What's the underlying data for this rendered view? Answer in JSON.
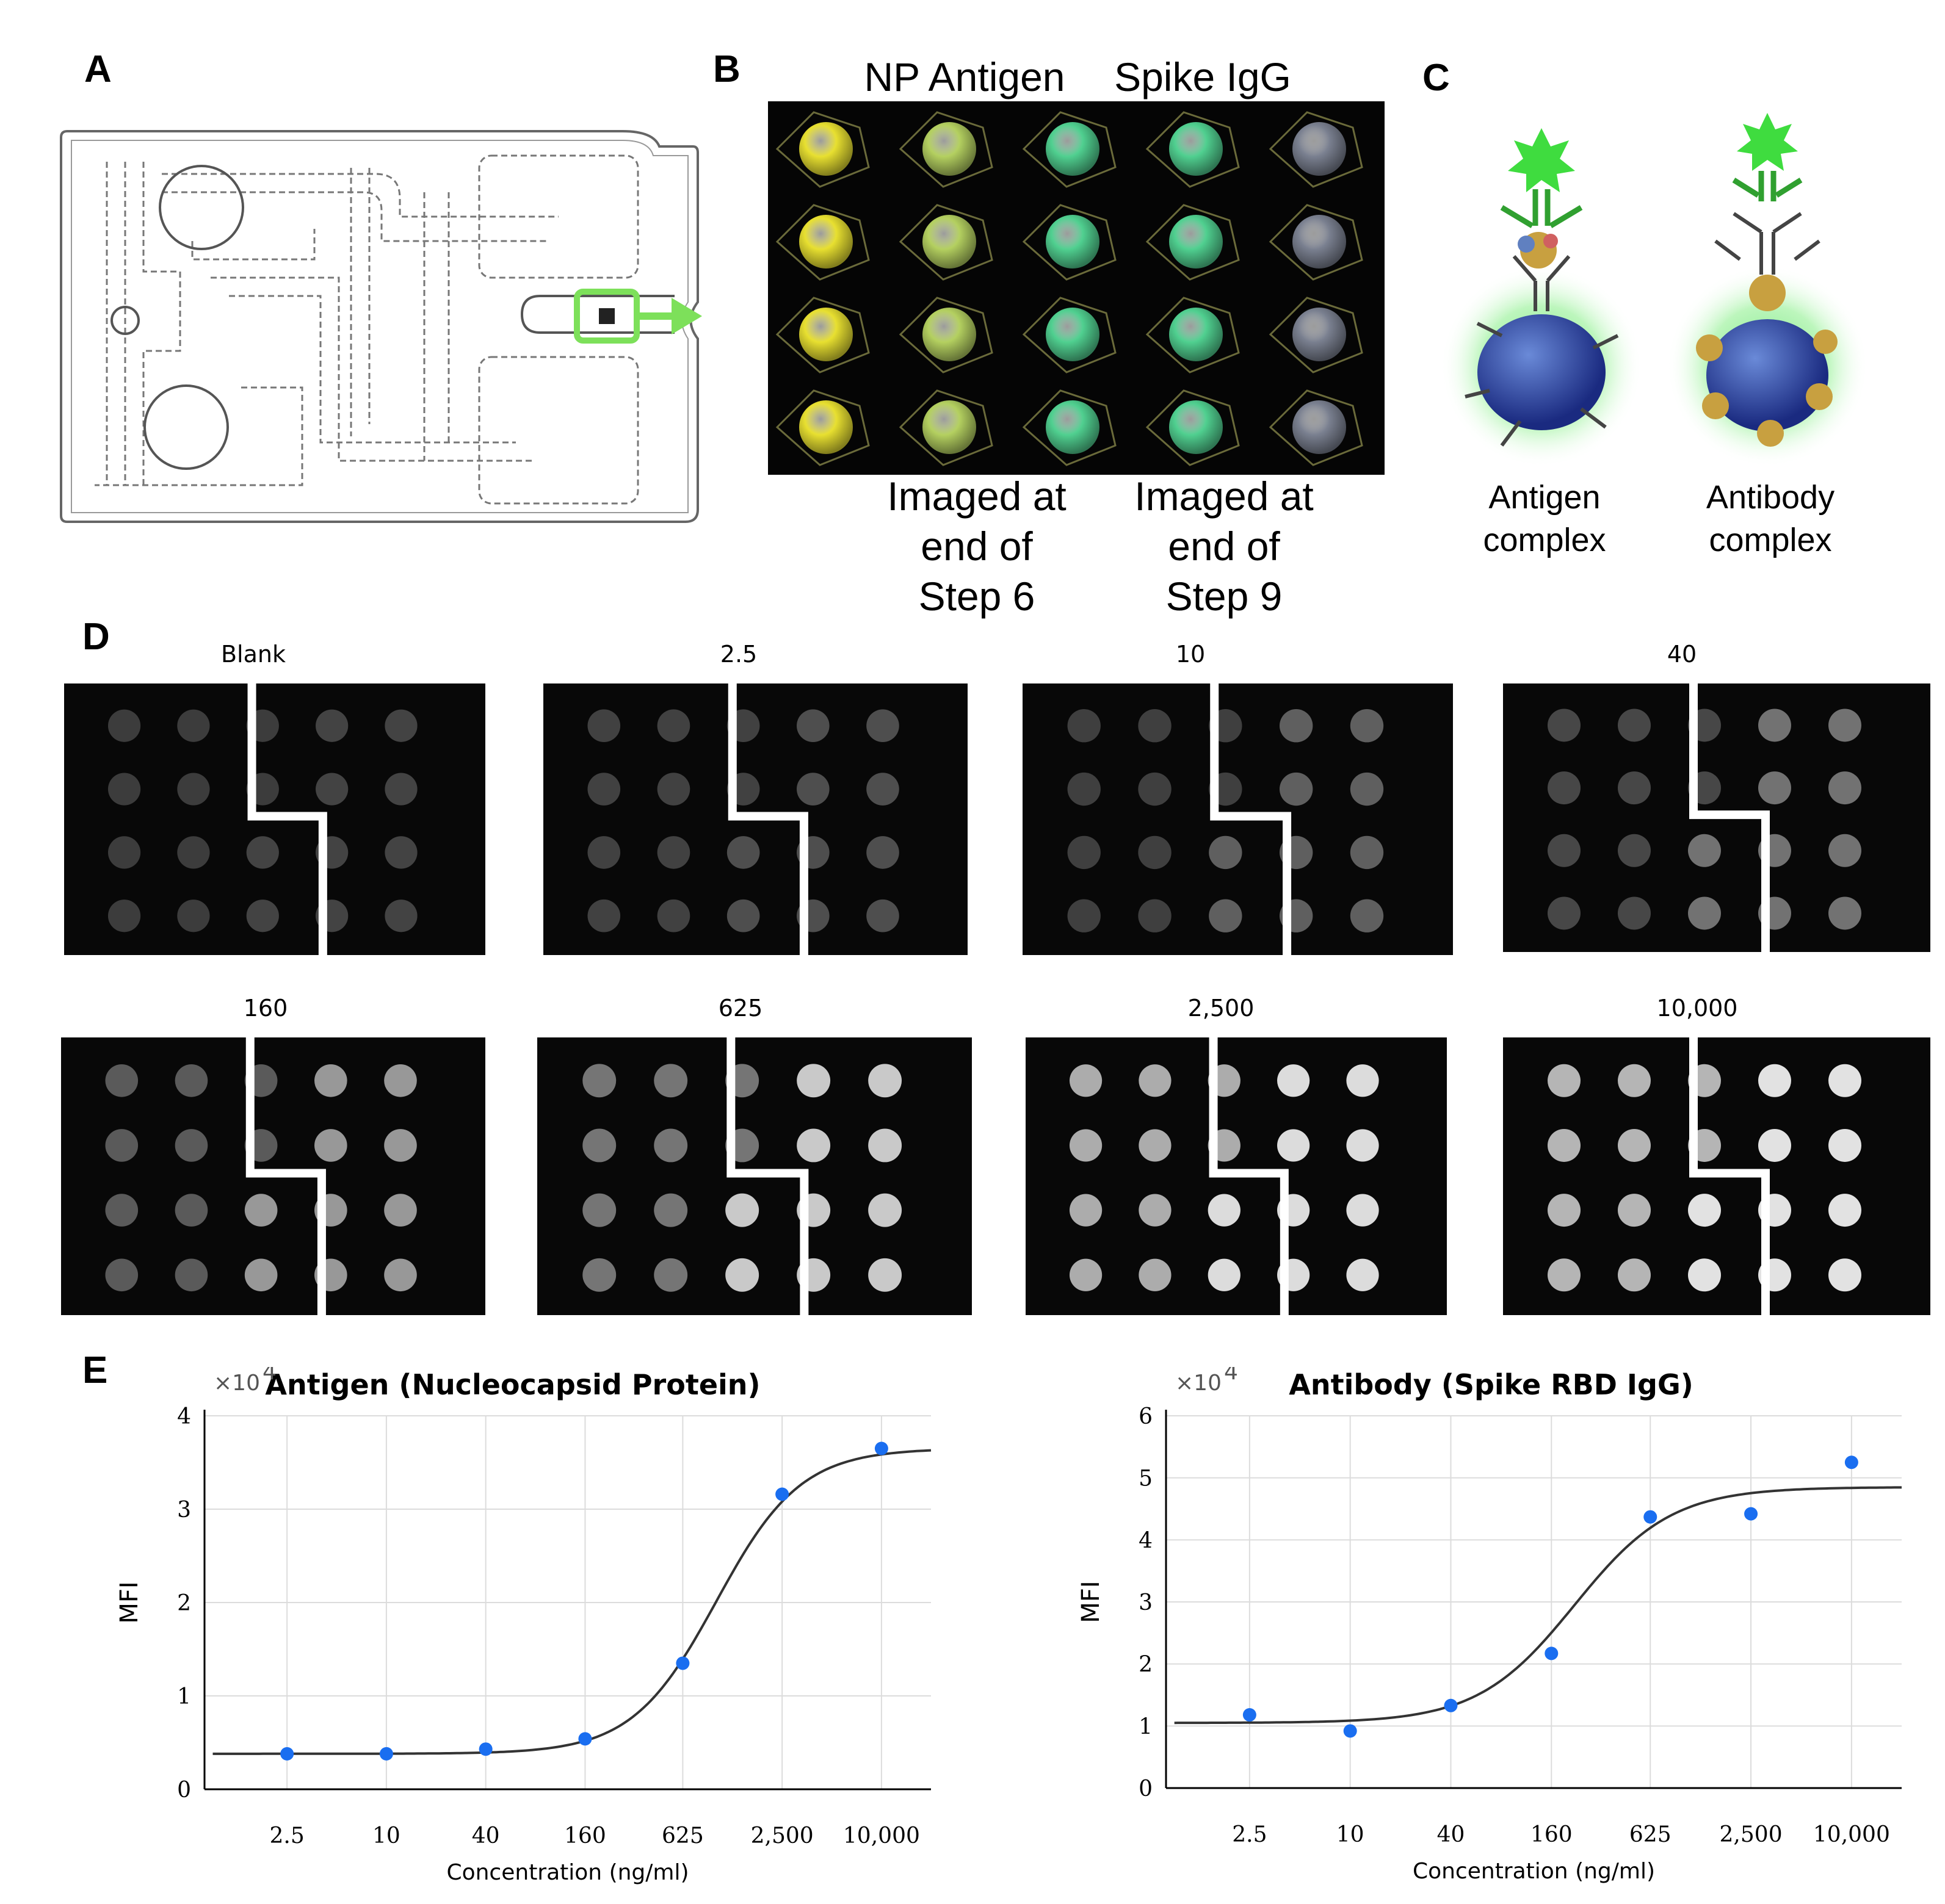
{
  "panels": {
    "a": {
      "letter": "A"
    },
    "b": {
      "letter": "B",
      "header_left": "NP Antigen",
      "header_right": "Spike IgG",
      "caption_left": [
        "Imaged at",
        "end of",
        "Step 6"
      ],
      "caption_right": [
        "Imaged at",
        "end of",
        "Step 9"
      ],
      "spot_colors": [
        "#e8e030",
        "#b4d060",
        "#50d090",
        "#50d090",
        "#7a8090"
      ]
    },
    "c": {
      "letter": "C",
      "label_left": [
        "Antigen",
        "complex"
      ],
      "label_right": [
        "Antibody",
        "complex"
      ]
    },
    "d": {
      "letter": "D",
      "labels": [
        "Blank",
        "2.5",
        "10",
        "40",
        "160",
        "625",
        "2,500",
        "10,000"
      ],
      "left_brightness": [
        0.12,
        0.15,
        0.14,
        0.18,
        0.28,
        0.42,
        0.7,
        0.75
      ],
      "right_brightness": [
        0.16,
        0.22,
        0.3,
        0.4,
        0.6,
        0.85,
        0.95,
        0.98
      ]
    },
    "e": {
      "letter": "E"
    }
  },
  "chart_data": [
    {
      "type": "scatter",
      "title": "Antigen (Nucleocapsid Protein)",
      "xlabel": "Concentration (ng/ml)",
      "ylabel": "MFI",
      "y_multiplier": "×10",
      "y_multiplier_exp": "4",
      "x": [
        "2.5",
        "10",
        "40",
        "160",
        "625",
        "2,500",
        "10,000"
      ],
      "x_values": [
        2.5,
        10,
        40,
        160,
        625,
        2500,
        10000
      ],
      "y": [
        0.38,
        0.38,
        0.43,
        0.54,
        1.35,
        3.16,
        3.65
      ],
      "yticks": [
        "0",
        "1",
        "2",
        "3",
        "4"
      ],
      "ylim": [
        0,
        4
      ],
      "fit": {
        "bottom": 0.38,
        "top": 3.65,
        "ec50": 1000,
        "hill": 1.7
      },
      "grid": true
    },
    {
      "type": "scatter",
      "title": "Antibody (Spike RBD IgG)",
      "xlabel": "Concentration (ng/ml)",
      "ylabel": "MFI",
      "y_multiplier": "×10",
      "y_multiplier_exp": "4",
      "x": [
        "2.5",
        "10",
        "40",
        "160",
        "625",
        "2,500",
        "10,000"
      ],
      "x_values": [
        2.5,
        10,
        40,
        160,
        625,
        2500,
        10000
      ],
      "y": [
        1.18,
        0.92,
        1.33,
        2.17,
        4.37,
        4.42,
        5.25
      ],
      "yticks": [
        "0",
        "1",
        "2",
        "3",
        "4",
        "5",
        "6"
      ],
      "ylim": [
        0,
        6
      ],
      "fit": {
        "bottom": 1.05,
        "top": 4.85,
        "ec50": 220,
        "hill": 1.5
      },
      "grid": true
    }
  ]
}
